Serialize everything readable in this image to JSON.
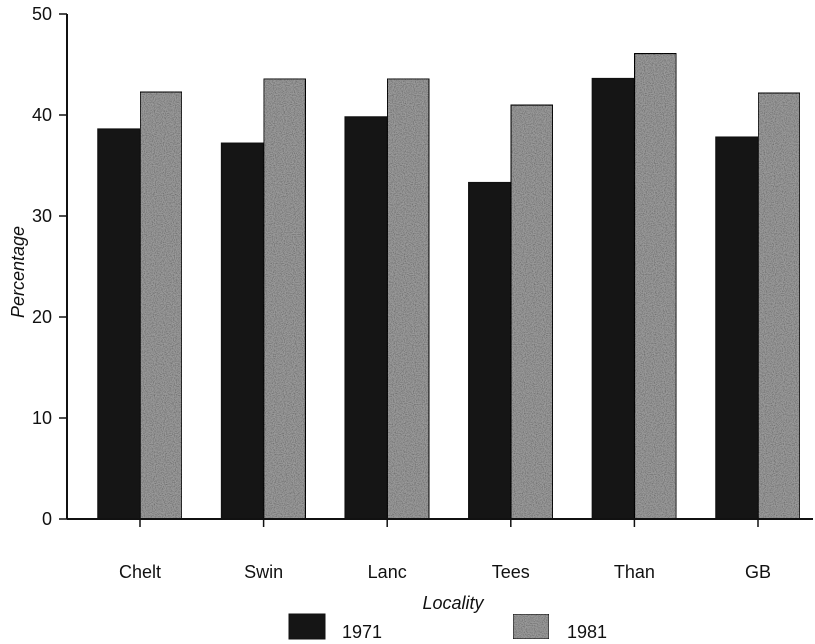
{
  "chart_data": {
    "type": "bar",
    "categories": [
      "Chelt",
      "Swin",
      "Lanc",
      "Tees",
      "Than",
      "GB"
    ],
    "series": [
      {
        "name": "1971",
        "color": "#151515",
        "values": [
          38.6,
          37.2,
          39.8,
          33.3,
          43.6,
          37.8
        ]
      },
      {
        "name": "1981",
        "color": "#9a9a9a",
        "values": [
          42.3,
          43.6,
          43.6,
          41.0,
          46.1,
          42.2
        ]
      }
    ],
    "title": "",
    "xlabel": "Locality",
    "ylabel": "Percentage",
    "ylim": [
      0,
      50
    ],
    "yticks": [
      0,
      10,
      20,
      30,
      40,
      50
    ],
    "grid": false,
    "legend_position": "bottom"
  }
}
